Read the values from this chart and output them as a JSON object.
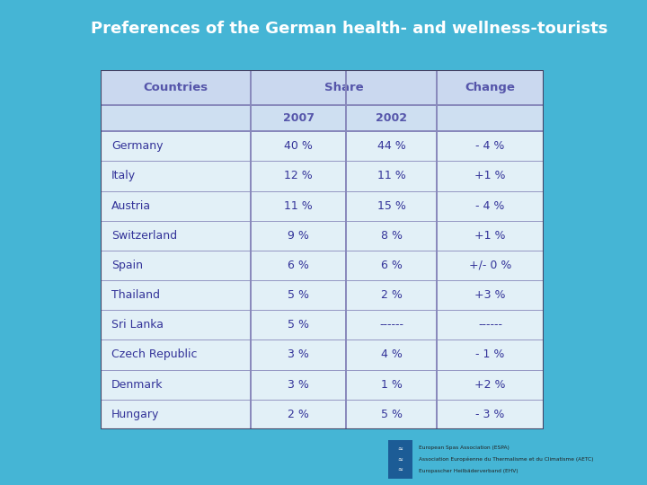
{
  "title": "Preferences of the German health- and wellness-tourists",
  "title_bg": "#1c5c96",
  "title_color": "#ffffff",
  "header_row": [
    "Countries",
    "Share",
    "",
    "Change"
  ],
  "subheader": [
    "",
    "2007",
    "2002",
    ""
  ],
  "rows": [
    [
      "Germany",
      "40 %",
      "44 %",
      "- 4 %"
    ],
    [
      "Italy",
      "12 %",
      "11 %",
      "+1 %"
    ],
    [
      "Austria",
      "11 %",
      "15 %",
      "- 4 %"
    ],
    [
      "Switzerland",
      "9 %",
      "8 %",
      "+1 %"
    ],
    [
      "Spain",
      "6 %",
      "6 %",
      "+/- 0 %"
    ],
    [
      "Thailand",
      "5 %",
      "2 %",
      "+3 %"
    ],
    [
      "Sri Lanka",
      "5 %",
      "------",
      "------"
    ],
    [
      "Czech Republic",
      "3 %",
      "4 %",
      "- 1 %"
    ],
    [
      "Denmark",
      "3 %",
      "1 %",
      "+2 %"
    ],
    [
      "Hungary",
      "2 %",
      "5 %",
      "- 3 %"
    ]
  ],
  "header_text_color": "#5555aa",
  "data_text_color": "#333399",
  "logo_text1": "European Spas Association (ESPA)",
  "logo_text2": "Association Européenne du Thermalisme et du Climatisme (AETC)",
  "logo_text3": "Europascher Heilbäderverband (EHV)",
  "bg_color": "#45b5d5",
  "table_alpha": 0.8,
  "header_bg": "#c8d4ee",
  "subheader_bg": "#c8d4ee",
  "row_bg": "#eef2fa",
  "divider_color": "#8888bb",
  "title_fontsize": 13,
  "header_fontsize": 9.5,
  "data_fontsize": 9
}
